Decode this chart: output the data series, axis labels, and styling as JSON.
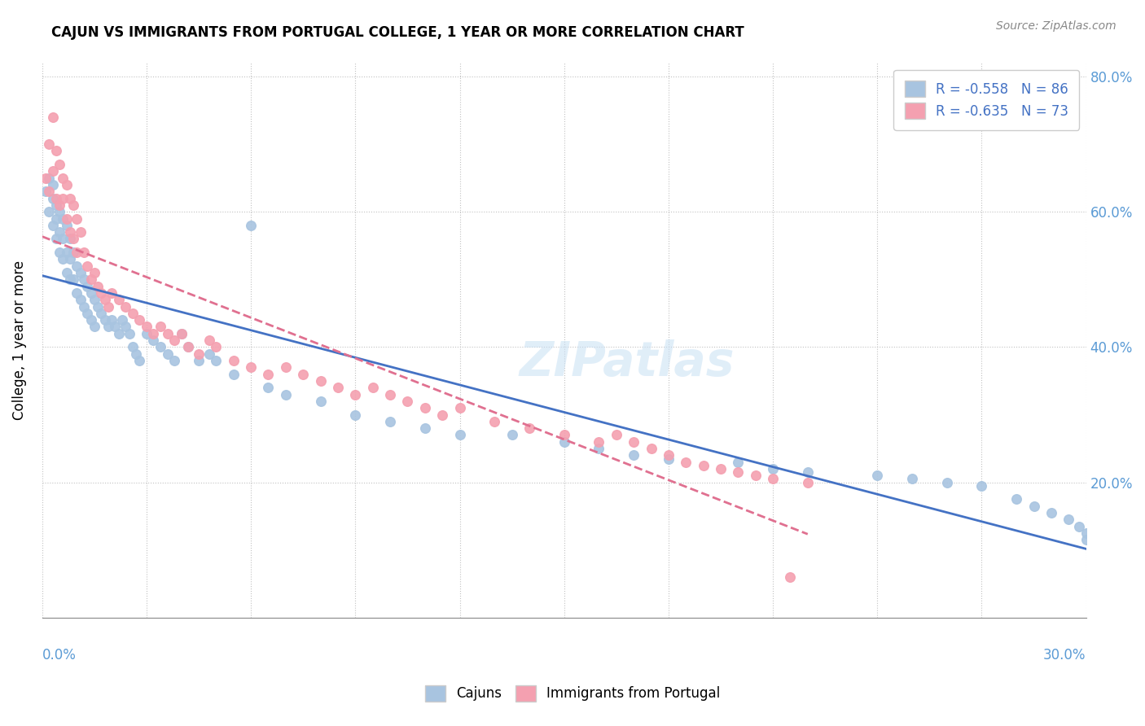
{
  "title": "CAJUN VS IMMIGRANTS FROM PORTUGAL COLLEGE, 1 YEAR OR MORE CORRELATION CHART",
  "source": "Source: ZipAtlas.com",
  "ylabel": "College, 1 year or more",
  "legend_blue_label": "R = -0.558   N = 86",
  "legend_pink_label": "R = -0.635   N = 73",
  "legend_bottom_cajuns": "Cajuns",
  "legend_bottom_portugal": "Immigrants from Portugal",
  "watermark": "ZIPatlas",
  "xlim": [
    0.0,
    0.3
  ],
  "ylim": [
    0.0,
    0.82
  ],
  "blue_color": "#a8c4e0",
  "pink_color": "#f4a0b0",
  "blue_line_color": "#4472c4",
  "pink_line_color": "#e07090",
  "cajun_x": [
    0.001,
    0.002,
    0.002,
    0.003,
    0.003,
    0.003,
    0.004,
    0.004,
    0.004,
    0.005,
    0.005,
    0.005,
    0.006,
    0.006,
    0.006,
    0.007,
    0.007,
    0.007,
    0.008,
    0.008,
    0.008,
    0.009,
    0.009,
    0.01,
    0.01,
    0.011,
    0.011,
    0.012,
    0.012,
    0.013,
    0.013,
    0.014,
    0.014,
    0.015,
    0.015,
    0.016,
    0.017,
    0.018,
    0.019,
    0.02,
    0.021,
    0.022,
    0.023,
    0.024,
    0.025,
    0.026,
    0.027,
    0.028,
    0.03,
    0.032,
    0.034,
    0.036,
    0.038,
    0.04,
    0.042,
    0.045,
    0.048,
    0.05,
    0.055,
    0.06,
    0.065,
    0.07,
    0.08,
    0.09,
    0.1,
    0.11,
    0.12,
    0.135,
    0.15,
    0.16,
    0.17,
    0.18,
    0.2,
    0.21,
    0.22,
    0.24,
    0.25,
    0.26,
    0.27,
    0.28,
    0.285,
    0.29,
    0.295,
    0.298,
    0.3,
    0.3
  ],
  "cajun_y": [
    0.63,
    0.65,
    0.6,
    0.64,
    0.58,
    0.62,
    0.61,
    0.59,
    0.56,
    0.6,
    0.57,
    0.54,
    0.59,
    0.56,
    0.53,
    0.58,
    0.54,
    0.51,
    0.56,
    0.53,
    0.5,
    0.54,
    0.5,
    0.52,
    0.48,
    0.51,
    0.47,
    0.5,
    0.46,
    0.49,
    0.45,
    0.48,
    0.44,
    0.47,
    0.43,
    0.46,
    0.45,
    0.44,
    0.43,
    0.44,
    0.43,
    0.42,
    0.44,
    0.43,
    0.42,
    0.4,
    0.39,
    0.38,
    0.42,
    0.41,
    0.4,
    0.39,
    0.38,
    0.42,
    0.4,
    0.38,
    0.39,
    0.38,
    0.36,
    0.58,
    0.34,
    0.33,
    0.32,
    0.3,
    0.29,
    0.28,
    0.27,
    0.27,
    0.26,
    0.25,
    0.24,
    0.235,
    0.23,
    0.22,
    0.215,
    0.21,
    0.205,
    0.2,
    0.195,
    0.175,
    0.165,
    0.155,
    0.145,
    0.135,
    0.125,
    0.115
  ],
  "portugal_x": [
    0.001,
    0.002,
    0.002,
    0.003,
    0.003,
    0.004,
    0.004,
    0.005,
    0.005,
    0.006,
    0.006,
    0.007,
    0.007,
    0.008,
    0.008,
    0.009,
    0.009,
    0.01,
    0.01,
    0.011,
    0.012,
    0.013,
    0.014,
    0.015,
    0.016,
    0.017,
    0.018,
    0.019,
    0.02,
    0.022,
    0.024,
    0.026,
    0.028,
    0.03,
    0.032,
    0.034,
    0.036,
    0.038,
    0.04,
    0.042,
    0.045,
    0.048,
    0.05,
    0.055,
    0.06,
    0.065,
    0.07,
    0.075,
    0.08,
    0.085,
    0.09,
    0.095,
    0.1,
    0.105,
    0.11,
    0.115,
    0.12,
    0.13,
    0.14,
    0.15,
    0.16,
    0.165,
    0.17,
    0.175,
    0.18,
    0.185,
    0.19,
    0.195,
    0.2,
    0.205,
    0.21,
    0.215,
    0.22
  ],
  "portugal_y": [
    0.65,
    0.63,
    0.7,
    0.66,
    0.74,
    0.62,
    0.69,
    0.67,
    0.61,
    0.65,
    0.62,
    0.64,
    0.59,
    0.62,
    0.57,
    0.61,
    0.56,
    0.59,
    0.54,
    0.57,
    0.54,
    0.52,
    0.5,
    0.51,
    0.49,
    0.48,
    0.47,
    0.46,
    0.48,
    0.47,
    0.46,
    0.45,
    0.44,
    0.43,
    0.42,
    0.43,
    0.42,
    0.41,
    0.42,
    0.4,
    0.39,
    0.41,
    0.4,
    0.38,
    0.37,
    0.36,
    0.37,
    0.36,
    0.35,
    0.34,
    0.33,
    0.34,
    0.33,
    0.32,
    0.31,
    0.3,
    0.31,
    0.29,
    0.28,
    0.27,
    0.26,
    0.27,
    0.26,
    0.25,
    0.24,
    0.23,
    0.225,
    0.22,
    0.215,
    0.21,
    0.205,
    0.06,
    0.2
  ]
}
